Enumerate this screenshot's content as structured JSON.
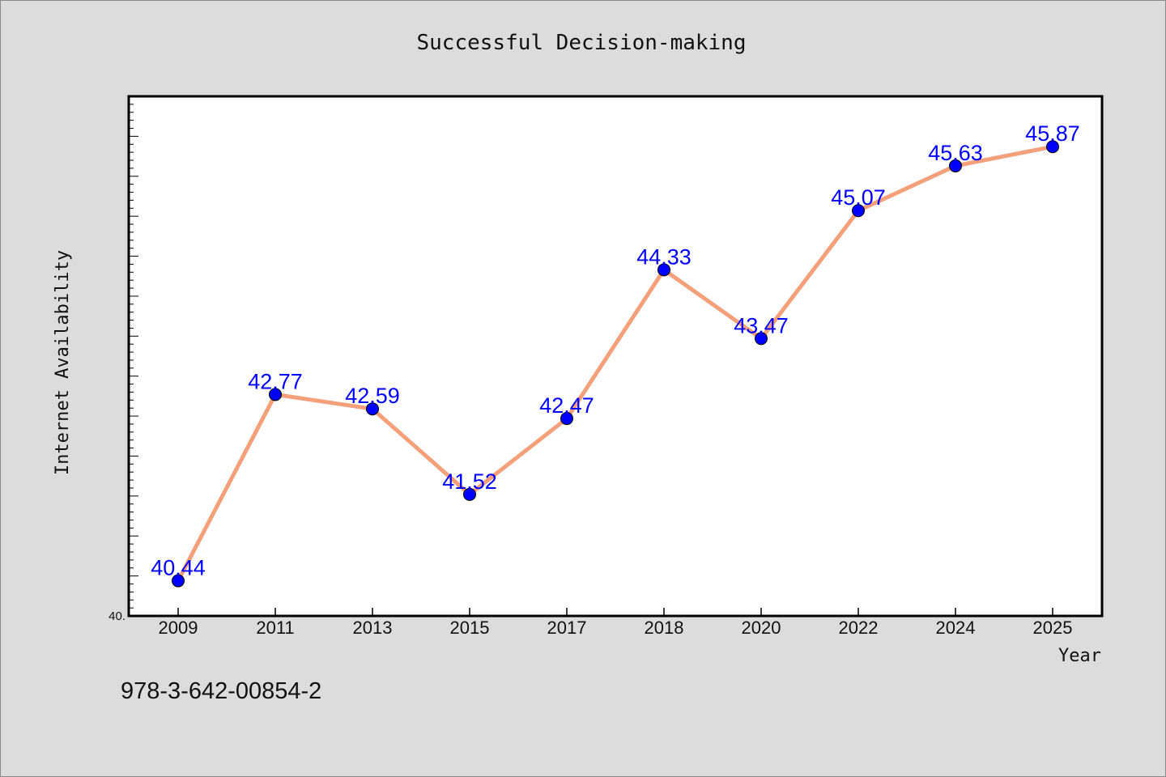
{
  "footnote": "978-3-642-00854-2",
  "colors": {
    "background": "#dcdcdc",
    "plot_background": "#ffffff",
    "line": "#f4a07a",
    "marker": "#0000ff",
    "data_label": "#0000ff"
  },
  "chart_data": {
    "type": "line",
    "title": "Successful Decision-making",
    "xlabel": "Year",
    "ylabel": "Internet Availability",
    "categories": [
      "2009",
      "2011",
      "2013",
      "2015",
      "2017",
      "2018",
      "2020",
      "2022",
      "2024",
      "2025"
    ],
    "series": [
      {
        "values": [
          40.44,
          42.77,
          42.59,
          41.52,
          42.47,
          44.33,
          43.47,
          45.07,
          45.63,
          45.87
        ],
        "labels": [
          "40.44",
          "42.77",
          "42.59",
          "41.52",
          "42.47",
          "44.33",
          "43.47",
          "45.07",
          "45.63",
          "45.87"
        ]
      }
    ],
    "ylim": [
      40,
      46.5
    ],
    "ytick_labels": [
      "40."
    ],
    "grid": false,
    "legend": "none"
  }
}
